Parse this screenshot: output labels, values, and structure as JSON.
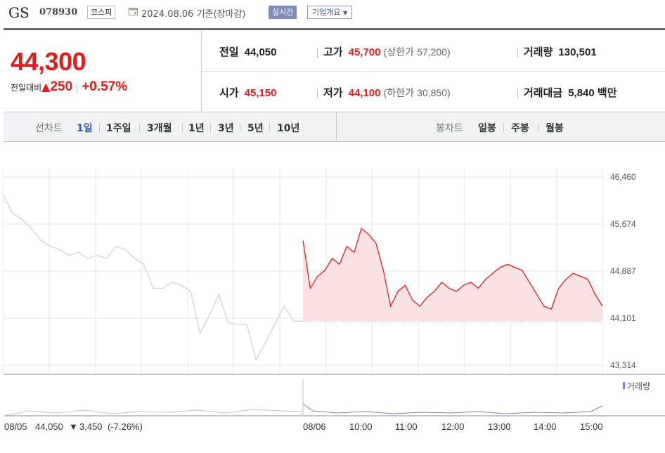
{
  "header": {
    "name": "GS",
    "code": "078930",
    "market": "코스피",
    "date": "2024.08.06 기준(장마감)",
    "realtime": "실시간",
    "company_info": "기업개요"
  },
  "quote": {
    "price": "44,300",
    "change_label": "전일대비",
    "change": "250",
    "rate": "+0.57%",
    "prev_label": "전일",
    "prev": "44,050",
    "high_label": "고가",
    "high": "45,700",
    "upper_label": "(상한가",
    "upper": "57,200)",
    "volume_label": "거래량",
    "volume": "130,501",
    "open_label": "시가",
    "open": "45,150",
    "low_label": "저가",
    "low": "44,100",
    "lower_label": "(하한가",
    "lower": "30,850)",
    "amount_label": "거래대금",
    "amount": "5,840 백만"
  },
  "tabs": {
    "line_label": "선차트",
    "line": [
      "1일",
      "1주일",
      "3개월",
      "1년",
      "3년",
      "5년",
      "10년"
    ],
    "candle_label": "봉차트",
    "candle": [
      "일봉",
      "주봉",
      "월봉"
    ]
  },
  "colors": {
    "up": "#e01d1d",
    "fill": "#fbe2e2",
    "prev_line": "#cfcfcf",
    "grid": "#e6e6e6",
    "volume": "#8a7bc8"
  },
  "chart_data": {
    "type": "line",
    "y_ticks": [
      "46,460",
      "45,674",
      "44,887",
      "44,101",
      "43,314"
    ],
    "ylim": [
      43314,
      46460
    ],
    "x_ticks": [
      "08/06",
      "10:00",
      "11:00",
      "12:00",
      "13:00",
      "14:00",
      "15:00"
    ],
    "prev_day": {
      "date": "08/05",
      "close": "44,050",
      "change": "3,450",
      "rate": "(-7.26%)",
      "values": [
        46150,
        45850,
        45750,
        45600,
        45400,
        45300,
        45250,
        45150,
        45200,
        45100,
        45150,
        45100,
        45300,
        45250,
        45100,
        45000,
        44600,
        44600,
        44700,
        44650,
        44550,
        43850,
        44150,
        44500,
        44020,
        44000,
        44000,
        43400,
        43700,
        44000,
        44300,
        44050,
        44050
      ]
    },
    "today": {
      "date": "08/06",
      "values": [
        45400,
        44600,
        44800,
        44900,
        45100,
        45000,
        45300,
        45200,
        45600,
        45500,
        45350,
        44900,
        44300,
        44550,
        44650,
        44400,
        44300,
        44450,
        44550,
        44700,
        44600,
        44550,
        44650,
        44700,
        44600,
        44750,
        44850,
        44950,
        45000,
        44950,
        44900,
        44700,
        44500,
        44300,
        44250,
        44600,
        44750,
        44850,
        44800,
        44750,
        44500,
        44300
      ]
    },
    "volume_label": "거래량"
  }
}
